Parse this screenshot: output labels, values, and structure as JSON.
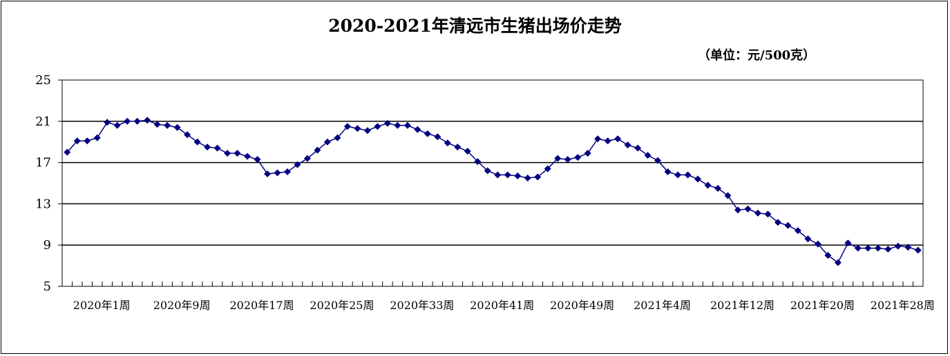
{
  "chart_data": {
    "type": "line",
    "title": "2020-2021年清远市生猪出场价走势",
    "unit": "（单位：元/500克）",
    "ylim": [
      5,
      25
    ],
    "yticks": [
      5,
      9,
      13,
      17,
      21,
      25
    ],
    "grid": true,
    "x_tick_labels": [
      "2020年1周",
      "2020年9周",
      "2020年17周",
      "2020年25周",
      "2020年33周",
      "2020年41周",
      "2020年49周",
      "2021年4周",
      "2021年12周",
      "2021年20周",
      "2021年28周"
    ],
    "label_every": 8,
    "colors": {
      "series": "#000080",
      "grid": "#000000"
    },
    "series": [
      {
        "values": [
          18.0,
          19.1,
          19.1,
          19.4,
          20.9,
          20.6,
          21.0,
          21.0,
          21.1,
          20.7,
          20.6,
          20.4,
          19.7,
          19.0,
          18.5,
          18.4,
          17.9,
          17.9,
          17.6,
          17.3,
          15.9,
          16.0,
          16.1,
          16.8,
          17.4,
          18.2,
          19.0,
          19.4,
          20.5,
          20.3,
          20.1,
          20.5,
          20.8,
          20.6,
          20.6,
          20.2,
          19.8,
          19.5,
          18.9,
          18.5,
          18.1,
          17.1,
          16.2,
          15.8,
          15.8,
          15.7,
          15.5,
          15.6,
          16.4,
          17.4,
          17.3,
          17.5,
          17.9,
          19.3,
          19.1,
          19.3,
          18.7,
          18.4,
          17.7,
          17.2,
          16.1,
          15.8,
          15.8,
          15.4,
          14.8,
          14.5,
          13.8,
          12.4,
          12.5,
          12.1,
          12.0,
          11.2,
          10.9,
          10.4,
          9.6,
          9.1,
          8.0,
          7.3,
          9.2,
          8.7,
          8.7,
          8.7,
          8.6,
          8.9,
          8.8,
          8.5
        ]
      }
    ]
  }
}
